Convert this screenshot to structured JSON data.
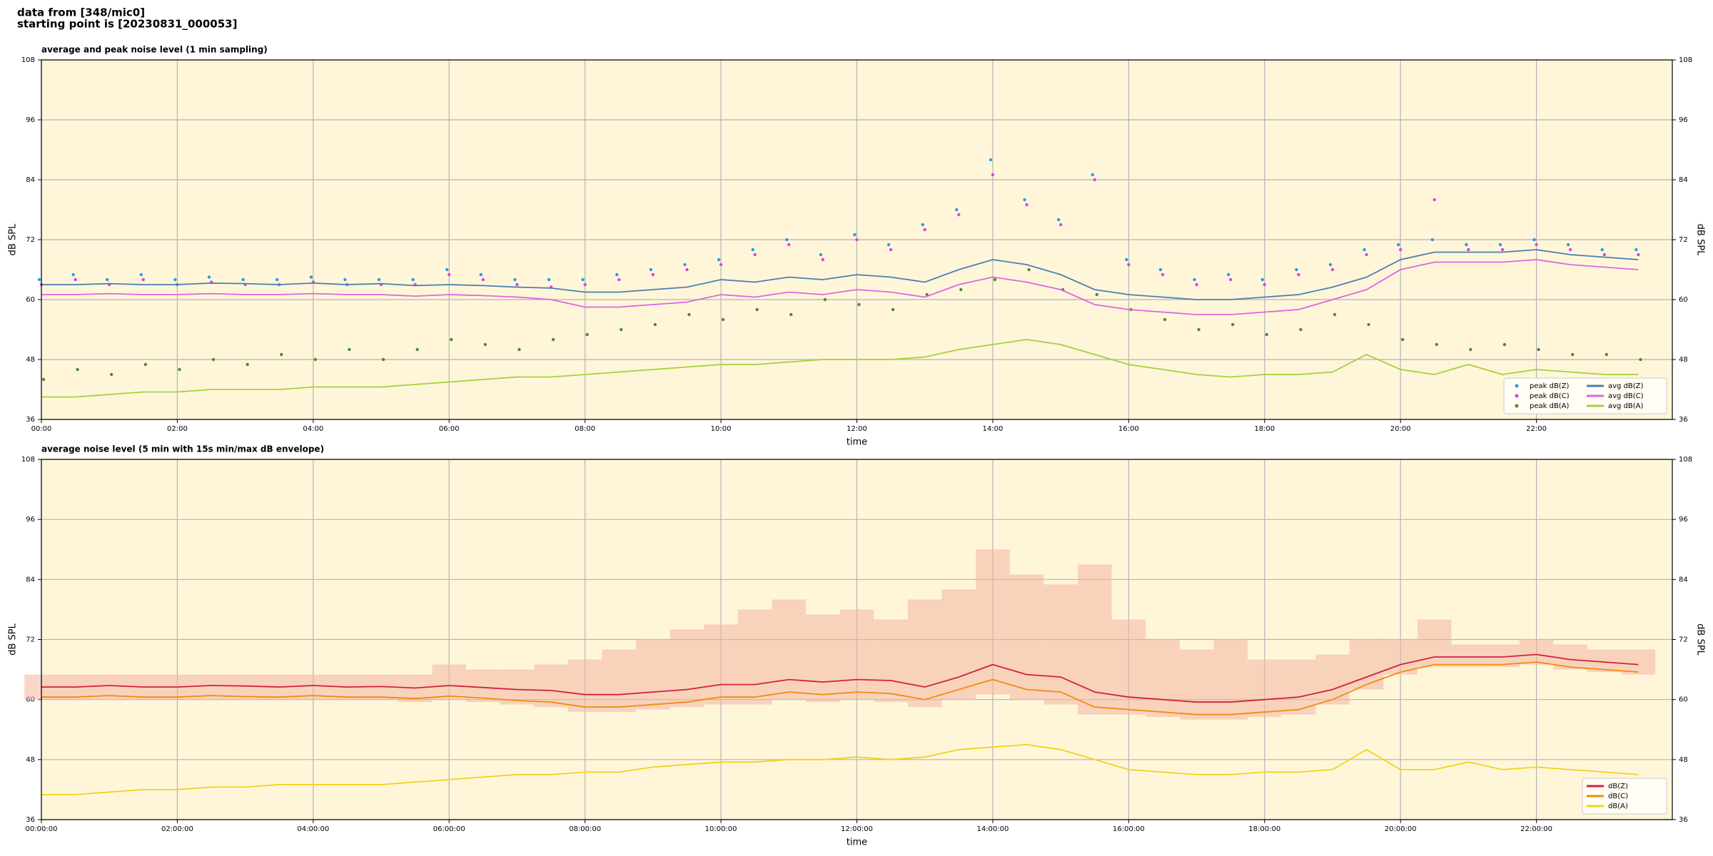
{
  "header": {
    "lines": [
      "data from [348/mic0]",
      "starting point is [20230831_000053]"
    ]
  },
  "chart_data": [
    {
      "type": "line",
      "title": "average and peak noise level (1 min sampling)",
      "xlabel": "time",
      "ylabel": "dB SPL",
      "x": [
        0,
        0.5,
        1,
        1.5,
        2,
        2.5,
        3,
        3.5,
        4,
        4.5,
        5,
        5.5,
        6,
        6.5,
        7,
        7.5,
        8,
        8.5,
        9,
        9.5,
        10,
        10.5,
        11,
        11.5,
        12,
        12.5,
        13,
        13.5,
        14,
        14.5,
        15,
        15.5,
        16,
        16.5,
        17,
        17.5,
        18,
        18.5,
        19,
        19.5,
        20,
        20.5,
        21,
        21.5,
        22,
        22.5,
        23,
        23.5
      ],
      "xlim": [
        0,
        24
      ],
      "xticks": [
        {
          "value": 0,
          "label": "00:00"
        },
        {
          "value": 2,
          "label": "02:00"
        },
        {
          "value": 4,
          "label": "04:00"
        },
        {
          "value": 6,
          "label": "06:00"
        },
        {
          "value": 8,
          "label": "08:00"
        },
        {
          "value": 10,
          "label": "10:00"
        },
        {
          "value": 12,
          "label": "12:00"
        },
        {
          "value": 14,
          "label": "14:00"
        },
        {
          "value": 16,
          "label": "16:00"
        },
        {
          "value": 18,
          "label": "18:00"
        },
        {
          "value": 20,
          "label": "20:00"
        },
        {
          "value": 22,
          "label": "22:00"
        }
      ],
      "ylim": [
        36,
        108
      ],
      "yticks": [
        36,
        48,
        60,
        72,
        84,
        96,
        108
      ],
      "grid": true,
      "legend": "lower right",
      "legend_columns": 2,
      "series": [
        {
          "name": "peak dB(Z)",
          "color": "#2a9be0",
          "style": "dots",
          "values": [
            64,
            65,
            64,
            65,
            64,
            64.5,
            64,
            64,
            64.5,
            64,
            64,
            64,
            66,
            65,
            64,
            64,
            64,
            65,
            66,
            67,
            68,
            70,
            72,
            69,
            73,
            71,
            75,
            78,
            88,
            80,
            76,
            85,
            68,
            66,
            64,
            65,
            64,
            66,
            67,
            70,
            71,
            72,
            71,
            71,
            72,
            71,
            70,
            70
          ]
        },
        {
          "name": "peak dB(C)",
          "color": "#e040e0",
          "style": "dots",
          "values": [
            63,
            64,
            63,
            64,
            63,
            63.5,
            63,
            63,
            63.5,
            63,
            63,
            63,
            65,
            64,
            63,
            62.5,
            63,
            64,
            65,
            66,
            67,
            69,
            71,
            68,
            72,
            70,
            74,
            77,
            85,
            79,
            75,
            84,
            67,
            65,
            63,
            64,
            63,
            65,
            66,
            69,
            70,
            80,
            70,
            70,
            71,
            70,
            69,
            69
          ]
        },
        {
          "name": "peak dB(A)",
          "color": "#4f8a2e",
          "style": "dots",
          "values": [
            44,
            46,
            45,
            47,
            46,
            48,
            47,
            49,
            48,
            50,
            48,
            50,
            52,
            51,
            50,
            52,
            53,
            54,
            55,
            57,
            56,
            58,
            57,
            60,
            59,
            58,
            61,
            62,
            64,
            66,
            62,
            61,
            58,
            56,
            54,
            55,
            53,
            54,
            57,
            55,
            52,
            51,
            50,
            51,
            50,
            49,
            49,
            48
          ]
        },
        {
          "name": "avg dB(Z)",
          "color": "#4a7fb0",
          "style": "line",
          "values": [
            63,
            63,
            63.2,
            63,
            63,
            63.3,
            63.2,
            63,
            63.3,
            63,
            63.2,
            62.8,
            63,
            62.8,
            62.5,
            62.3,
            61.5,
            61.5,
            62,
            62.5,
            64,
            63.5,
            64.5,
            64,
            65,
            64.5,
            63.5,
            66,
            68,
            67,
            65,
            62,
            61,
            60.5,
            60,
            60,
            60.5,
            61,
            62.5,
            64.5,
            68,
            69.5,
            69.5,
            69.5,
            70,
            69,
            68.5,
            68
          ]
        },
        {
          "name": "avg dB(C)",
          "color": "#e064e0",
          "style": "line",
          "values": [
            61,
            61,
            61.2,
            61,
            61,
            61.2,
            61,
            61,
            61.2,
            61,
            61,
            60.7,
            61,
            60.8,
            60.5,
            60,
            58.5,
            58.5,
            59,
            59.5,
            61,
            60.5,
            61.5,
            61,
            62,
            61.5,
            60.5,
            63,
            64.5,
            63.5,
            62,
            59,
            58,
            57.5,
            57,
            57,
            57.5,
            58,
            60,
            62,
            66,
            67.5,
            67.5,
            67.5,
            68,
            67,
            66.5,
            66
          ]
        },
        {
          "name": "avg dB(A)",
          "color": "#a6d03c",
          "style": "line",
          "values": [
            40.5,
            40.5,
            41,
            41.5,
            41.5,
            42,
            42,
            42,
            42.5,
            42.5,
            42.5,
            43,
            43.5,
            44,
            44.5,
            44.5,
            45,
            45.5,
            46,
            46.5,
            47,
            47,
            47.5,
            48,
            48,
            48,
            48.5,
            50,
            51,
            52,
            51,
            49,
            47,
            46,
            45,
            44.5,
            45,
            45,
            45.5,
            49,
            46,
            45,
            47,
            45,
            46,
            45.5,
            45,
            45
          ]
        }
      ]
    },
    {
      "type": "line",
      "title": "average noise level (5 min with 15s min/max dB envelope)",
      "xlabel": "time",
      "ylabel": "dB SPL",
      "x": [
        0,
        0.5,
        1,
        1.5,
        2,
        2.5,
        3,
        3.5,
        4,
        4.5,
        5,
        5.5,
        6,
        6.5,
        7,
        7.5,
        8,
        8.5,
        9,
        9.5,
        10,
        10.5,
        11,
        11.5,
        12,
        12.5,
        13,
        13.5,
        14,
        14.5,
        15,
        15.5,
        16,
        16.5,
        17,
        17.5,
        18,
        18.5,
        19,
        19.5,
        20,
        20.5,
        21,
        21.5,
        22,
        22.5,
        23,
        23.5
      ],
      "xlim": [
        0,
        24
      ],
      "xticks": [
        {
          "value": 0,
          "label": "00:00:00"
        },
        {
          "value": 2,
          "label": "02:00:00"
        },
        {
          "value": 4,
          "label": "04:00:00"
        },
        {
          "value": 6,
          "label": "06:00:00"
        },
        {
          "value": 8,
          "label": "08:00:00"
        },
        {
          "value": 10,
          "label": "10:00:00"
        },
        {
          "value": 12,
          "label": "12:00:00"
        },
        {
          "value": 14,
          "label": "14:00:00"
        },
        {
          "value": 16,
          "label": "16:00:00"
        },
        {
          "value": 18,
          "label": "18:00:00"
        },
        {
          "value": 20,
          "label": "20:00:00"
        },
        {
          "value": 22,
          "label": "22:00:00"
        }
      ],
      "ylim": [
        36,
        108
      ],
      "yticks": [
        36,
        48,
        60,
        72,
        84,
        96,
        108
      ],
      "grid": true,
      "legend": "lower right",
      "legend_columns": 1,
      "envelope": {
        "color": "#f4b4a2",
        "min": [
          60,
          60,
          60,
          60,
          60,
          60,
          60,
          60,
          60,
          60,
          60,
          59.5,
          60,
          59.5,
          59,
          58.5,
          57.5,
          57.5,
          58,
          58.5,
          59,
          59,
          60,
          59.5,
          60,
          59.5,
          58.5,
          60,
          61,
          60,
          59,
          57,
          57,
          56.5,
          56,
          56,
          56.5,
          57,
          59,
          62,
          65,
          66.5,
          66.5,
          66.5,
          67,
          66,
          65.5,
          65
        ],
        "max": [
          65,
          65,
          65,
          65,
          65,
          65,
          65,
          65,
          65,
          65,
          65,
          65,
          67,
          66,
          66,
          67,
          68,
          70,
          72,
          74,
          75,
          78,
          80,
          77,
          78,
          76,
          80,
          82,
          90,
          85,
          83,
          87,
          76,
          72,
          70,
          72,
          68,
          68,
          69,
          72,
          72,
          76,
          71,
          71,
          72,
          71,
          70,
          70
        ]
      },
      "series": [
        {
          "name": "dB(Z)",
          "color": "#d4203c",
          "style": "line",
          "values": [
            62.5,
            62.5,
            62.8,
            62.5,
            62.5,
            62.8,
            62.7,
            62.5,
            62.8,
            62.5,
            62.6,
            62.3,
            62.8,
            62.4,
            62,
            61.8,
            61,
            61,
            61.5,
            62,
            63,
            63,
            64,
            63.5,
            64,
            63.8,
            62.5,
            64.5,
            67,
            65,
            64.5,
            61.5,
            60.5,
            60,
            59.5,
            59.5,
            60,
            60.5,
            62,
            64.5,
            67,
            68.5,
            68.5,
            68.5,
            69,
            68,
            67.5,
            67
          ]
        },
        {
          "name": "dB(C)",
          "color": "#f08c10",
          "style": "line",
          "values": [
            60.5,
            60.5,
            60.8,
            60.5,
            60.5,
            60.8,
            60.6,
            60.5,
            60.8,
            60.5,
            60.5,
            60.2,
            60.7,
            60.3,
            59.8,
            59.5,
            58.5,
            58.5,
            59,
            59.5,
            60.5,
            60.5,
            61.5,
            61,
            61.5,
            61.2,
            60,
            62,
            64,
            62,
            61.5,
            58.5,
            58,
            57.5,
            57,
            57,
            57.5,
            58,
            60,
            63,
            65.5,
            67,
            67,
            67,
            67.5,
            66.5,
            66,
            65.5
          ]
        },
        {
          "name": "dB(A)",
          "color": "#f2d21a",
          "style": "line",
          "values": [
            41,
            41,
            41.5,
            42,
            42,
            42.5,
            42.5,
            43,
            43,
            43,
            43,
            43.5,
            44,
            44.5,
            45,
            45,
            45.5,
            45.5,
            46.5,
            47,
            47.5,
            47.5,
            48,
            48,
            48.5,
            48,
            48.5,
            50,
            50.5,
            51,
            50,
            48,
            46,
            45.5,
            45,
            45,
            45.5,
            45.5,
            46,
            50,
            46,
            46,
            47.5,
            46,
            46.5,
            46,
            45.5,
            45
          ]
        }
      ]
    }
  ]
}
